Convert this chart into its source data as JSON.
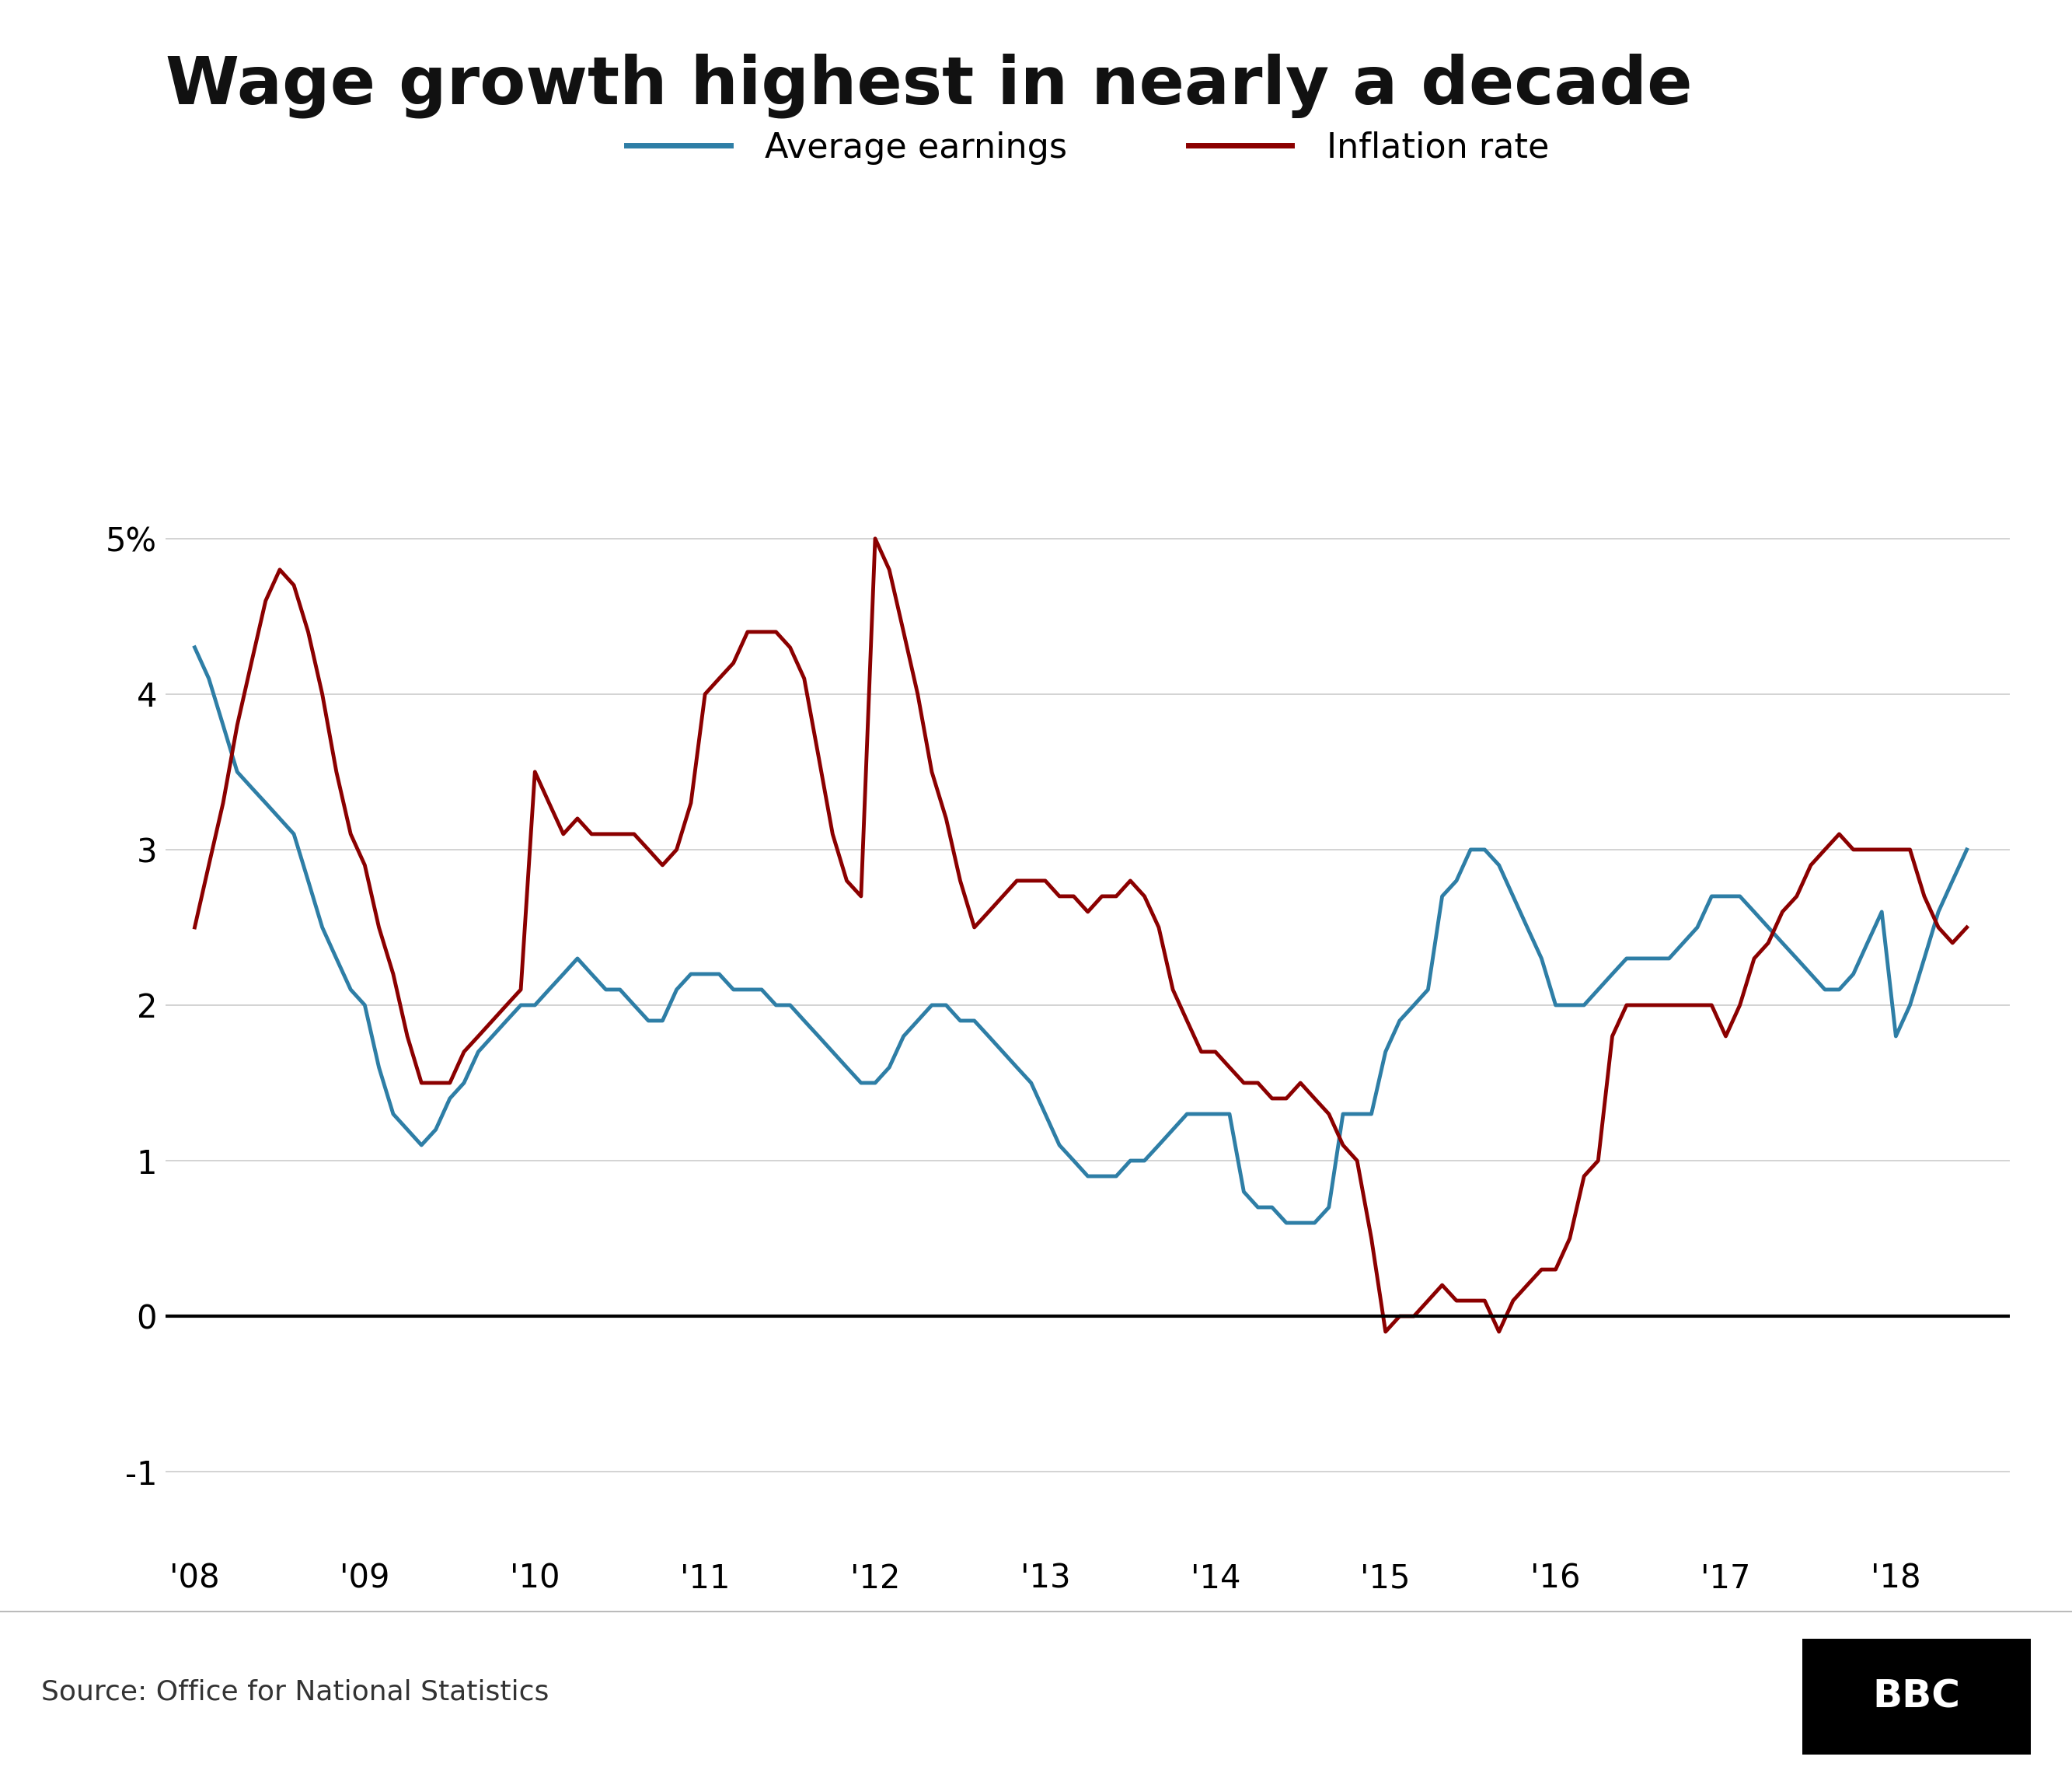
{
  "title": "Wage growth highest in nearly a decade",
  "source": "Source: Office for National Statistics",
  "legend": {
    "avg_earnings_label": "Average earnings",
    "inflation_label": "Inflation rate"
  },
  "avg_earnings": {
    "x": [
      2008.0,
      2008.083,
      2008.167,
      2008.25,
      2008.333,
      2008.417,
      2008.5,
      2008.583,
      2008.667,
      2008.75,
      2008.833,
      2008.917,
      2009.0,
      2009.083,
      2009.167,
      2009.25,
      2009.333,
      2009.417,
      2009.5,
      2009.583,
      2009.667,
      2009.75,
      2009.833,
      2009.917,
      2010.0,
      2010.083,
      2010.167,
      2010.25,
      2010.333,
      2010.417,
      2010.5,
      2010.583,
      2010.667,
      2010.75,
      2010.833,
      2010.917,
      2011.0,
      2011.083,
      2011.167,
      2011.25,
      2011.333,
      2011.417,
      2011.5,
      2011.583,
      2011.667,
      2011.75,
      2011.833,
      2011.917,
      2012.0,
      2012.083,
      2012.167,
      2012.25,
      2012.333,
      2012.417,
      2012.5,
      2012.583,
      2012.667,
      2012.75,
      2012.833,
      2012.917,
      2013.0,
      2013.083,
      2013.167,
      2013.25,
      2013.333,
      2013.417,
      2013.5,
      2013.583,
      2013.667,
      2013.75,
      2013.833,
      2013.917,
      2014.0,
      2014.083,
      2014.167,
      2014.25,
      2014.333,
      2014.417,
      2014.5,
      2014.583,
      2014.667,
      2014.75,
      2014.833,
      2014.917,
      2015.0,
      2015.083,
      2015.167,
      2015.25,
      2015.333,
      2015.417,
      2015.5,
      2015.583,
      2015.667,
      2015.75,
      2015.833,
      2015.917,
      2016.0,
      2016.083,
      2016.167,
      2016.25,
      2016.333,
      2016.417,
      2016.5,
      2016.583,
      2016.667,
      2016.75,
      2016.833,
      2016.917,
      2017.0,
      2017.083,
      2017.167,
      2017.25,
      2017.333,
      2017.417,
      2017.5,
      2017.583,
      2017.667,
      2017.75,
      2017.833,
      2017.917,
      2018.0,
      2018.083,
      2018.167,
      2018.25,
      2018.333,
      2018.417
    ],
    "y": [
      4.3,
      4.1,
      3.8,
      3.5,
      3.4,
      3.3,
      3.2,
      3.1,
      2.8,
      2.5,
      2.3,
      2.1,
      2.0,
      1.6,
      1.3,
      1.2,
      1.1,
      1.2,
      1.4,
      1.5,
      1.7,
      1.8,
      1.9,
      2.0,
      2.0,
      2.1,
      2.2,
      2.3,
      2.2,
      2.1,
      2.1,
      2.0,
      1.9,
      1.9,
      2.1,
      2.2,
      2.2,
      2.2,
      2.1,
      2.1,
      2.1,
      2.0,
      2.0,
      1.9,
      1.8,
      1.7,
      1.6,
      1.5,
      1.5,
      1.6,
      1.8,
      1.9,
      2.0,
      2.0,
      1.9,
      1.9,
      1.8,
      1.7,
      1.6,
      1.5,
      1.3,
      1.1,
      1.0,
      0.9,
      0.9,
      0.9,
      1.0,
      1.0,
      1.1,
      1.2,
      1.3,
      1.3,
      1.3,
      1.3,
      0.8,
      0.7,
      0.7,
      0.6,
      0.6,
      0.6,
      0.7,
      1.3,
      1.3,
      1.3,
      1.7,
      1.9,
      2.0,
      2.1,
      2.7,
      2.8,
      3.0,
      3.0,
      2.9,
      2.7,
      2.5,
      2.3,
      2.0,
      2.0,
      2.0,
      2.1,
      2.2,
      2.3,
      2.3,
      2.3,
      2.3,
      2.4,
      2.5,
      2.7,
      2.7,
      2.7,
      2.6,
      2.5,
      2.4,
      2.3,
      2.2,
      2.1,
      2.1,
      2.2,
      2.4,
      2.6,
      1.8,
      2.0,
      2.3,
      2.6,
      2.8,
      3.0
    ]
  },
  "inflation": {
    "x": [
      2008.0,
      2008.083,
      2008.167,
      2008.25,
      2008.333,
      2008.417,
      2008.5,
      2008.583,
      2008.667,
      2008.75,
      2008.833,
      2008.917,
      2009.0,
      2009.083,
      2009.167,
      2009.25,
      2009.333,
      2009.417,
      2009.5,
      2009.583,
      2009.667,
      2009.75,
      2009.833,
      2009.917,
      2010.0,
      2010.083,
      2010.167,
      2010.25,
      2010.333,
      2010.417,
      2010.5,
      2010.583,
      2010.667,
      2010.75,
      2010.833,
      2010.917,
      2011.0,
      2011.083,
      2011.167,
      2011.25,
      2011.333,
      2011.417,
      2011.5,
      2011.583,
      2011.667,
      2011.75,
      2011.833,
      2011.917,
      2012.0,
      2012.083,
      2012.167,
      2012.25,
      2012.333,
      2012.417,
      2012.5,
      2012.583,
      2012.667,
      2012.75,
      2012.833,
      2012.917,
      2013.0,
      2013.083,
      2013.167,
      2013.25,
      2013.333,
      2013.417,
      2013.5,
      2013.583,
      2013.667,
      2013.75,
      2013.833,
      2013.917,
      2014.0,
      2014.083,
      2014.167,
      2014.25,
      2014.333,
      2014.417,
      2014.5,
      2014.583,
      2014.667,
      2014.75,
      2014.833,
      2014.917,
      2015.0,
      2015.083,
      2015.167,
      2015.25,
      2015.333,
      2015.417,
      2015.5,
      2015.583,
      2015.667,
      2015.75,
      2015.833,
      2015.917,
      2016.0,
      2016.083,
      2016.167,
      2016.25,
      2016.333,
      2016.417,
      2016.5,
      2016.583,
      2016.667,
      2016.75,
      2016.833,
      2016.917,
      2017.0,
      2017.083,
      2017.167,
      2017.25,
      2017.333,
      2017.417,
      2017.5,
      2017.583,
      2017.667,
      2017.75,
      2017.833,
      2017.917,
      2018.0,
      2018.083,
      2018.167,
      2018.25,
      2018.333,
      2018.417
    ],
    "y": [
      2.5,
      2.9,
      3.3,
      3.8,
      4.2,
      4.6,
      4.8,
      4.7,
      4.4,
      4.0,
      3.5,
      3.1,
      2.9,
      2.5,
      2.2,
      1.8,
      1.5,
      1.5,
      1.5,
      1.7,
      1.8,
      1.9,
      2.0,
      2.1,
      3.5,
      3.3,
      3.1,
      3.2,
      3.1,
      3.1,
      3.1,
      3.1,
      3.0,
      2.9,
      3.0,
      3.3,
      4.0,
      4.1,
      4.2,
      4.4,
      4.4,
      4.4,
      4.3,
      4.1,
      3.6,
      3.1,
      2.8,
      2.7,
      5.0,
      4.8,
      4.4,
      4.0,
      3.5,
      3.2,
      2.8,
      2.5,
      2.6,
      2.7,
      2.8,
      2.8,
      2.8,
      2.7,
      2.7,
      2.6,
      2.7,
      2.7,
      2.8,
      2.7,
      2.5,
      2.1,
      1.9,
      1.7,
      1.7,
      1.6,
      1.5,
      1.5,
      1.4,
      1.4,
      1.5,
      1.4,
      1.3,
      1.1,
      1.0,
      0.5,
      -0.1,
      0.0,
      0.0,
      0.1,
      0.2,
      0.1,
      0.1,
      0.1,
      -0.1,
      0.1,
      0.2,
      0.3,
      0.3,
      0.5,
      0.9,
      1.0,
      1.8,
      2.0,
      2.0,
      2.0,
      2.0,
      2.0,
      2.0,
      2.0,
      1.8,
      2.0,
      2.3,
      2.4,
      2.6,
      2.7,
      2.9,
      3.0,
      3.1,
      3.0,
      3.0,
      3.0,
      3.0,
      3.0,
      2.7,
      2.5,
      2.4,
      2.5
    ]
  },
  "xlim": [
    2007.83,
    2018.67
  ],
  "ylim": [
    -1.5,
    5.6
  ],
  "yticks": [
    -1,
    0,
    1,
    2,
    3,
    4,
    5
  ],
  "ytick_labels": [
    "-1",
    "0",
    "1",
    "2",
    "3",
    "4",
    "5%"
  ],
  "xtick_years": [
    2008,
    2009,
    2010,
    2011,
    2012,
    2013,
    2014,
    2015,
    2016,
    2017,
    2018
  ],
  "xtick_labels": [
    "'08",
    "'09",
    "'10",
    "'11",
    "'12",
    "'13",
    "'14",
    "'15",
    "'16",
    "'17",
    "'18"
  ],
  "background_color": "#ffffff",
  "grid_color": "#cccccc",
  "zero_line_color": "#000000",
  "avg_color": "#2E7EA6",
  "inf_color": "#8B0000",
  "line_width": 3.5,
  "title_fontsize": 62,
  "tick_fontsize": 30,
  "legend_fontsize": 32,
  "source_fontsize": 26
}
